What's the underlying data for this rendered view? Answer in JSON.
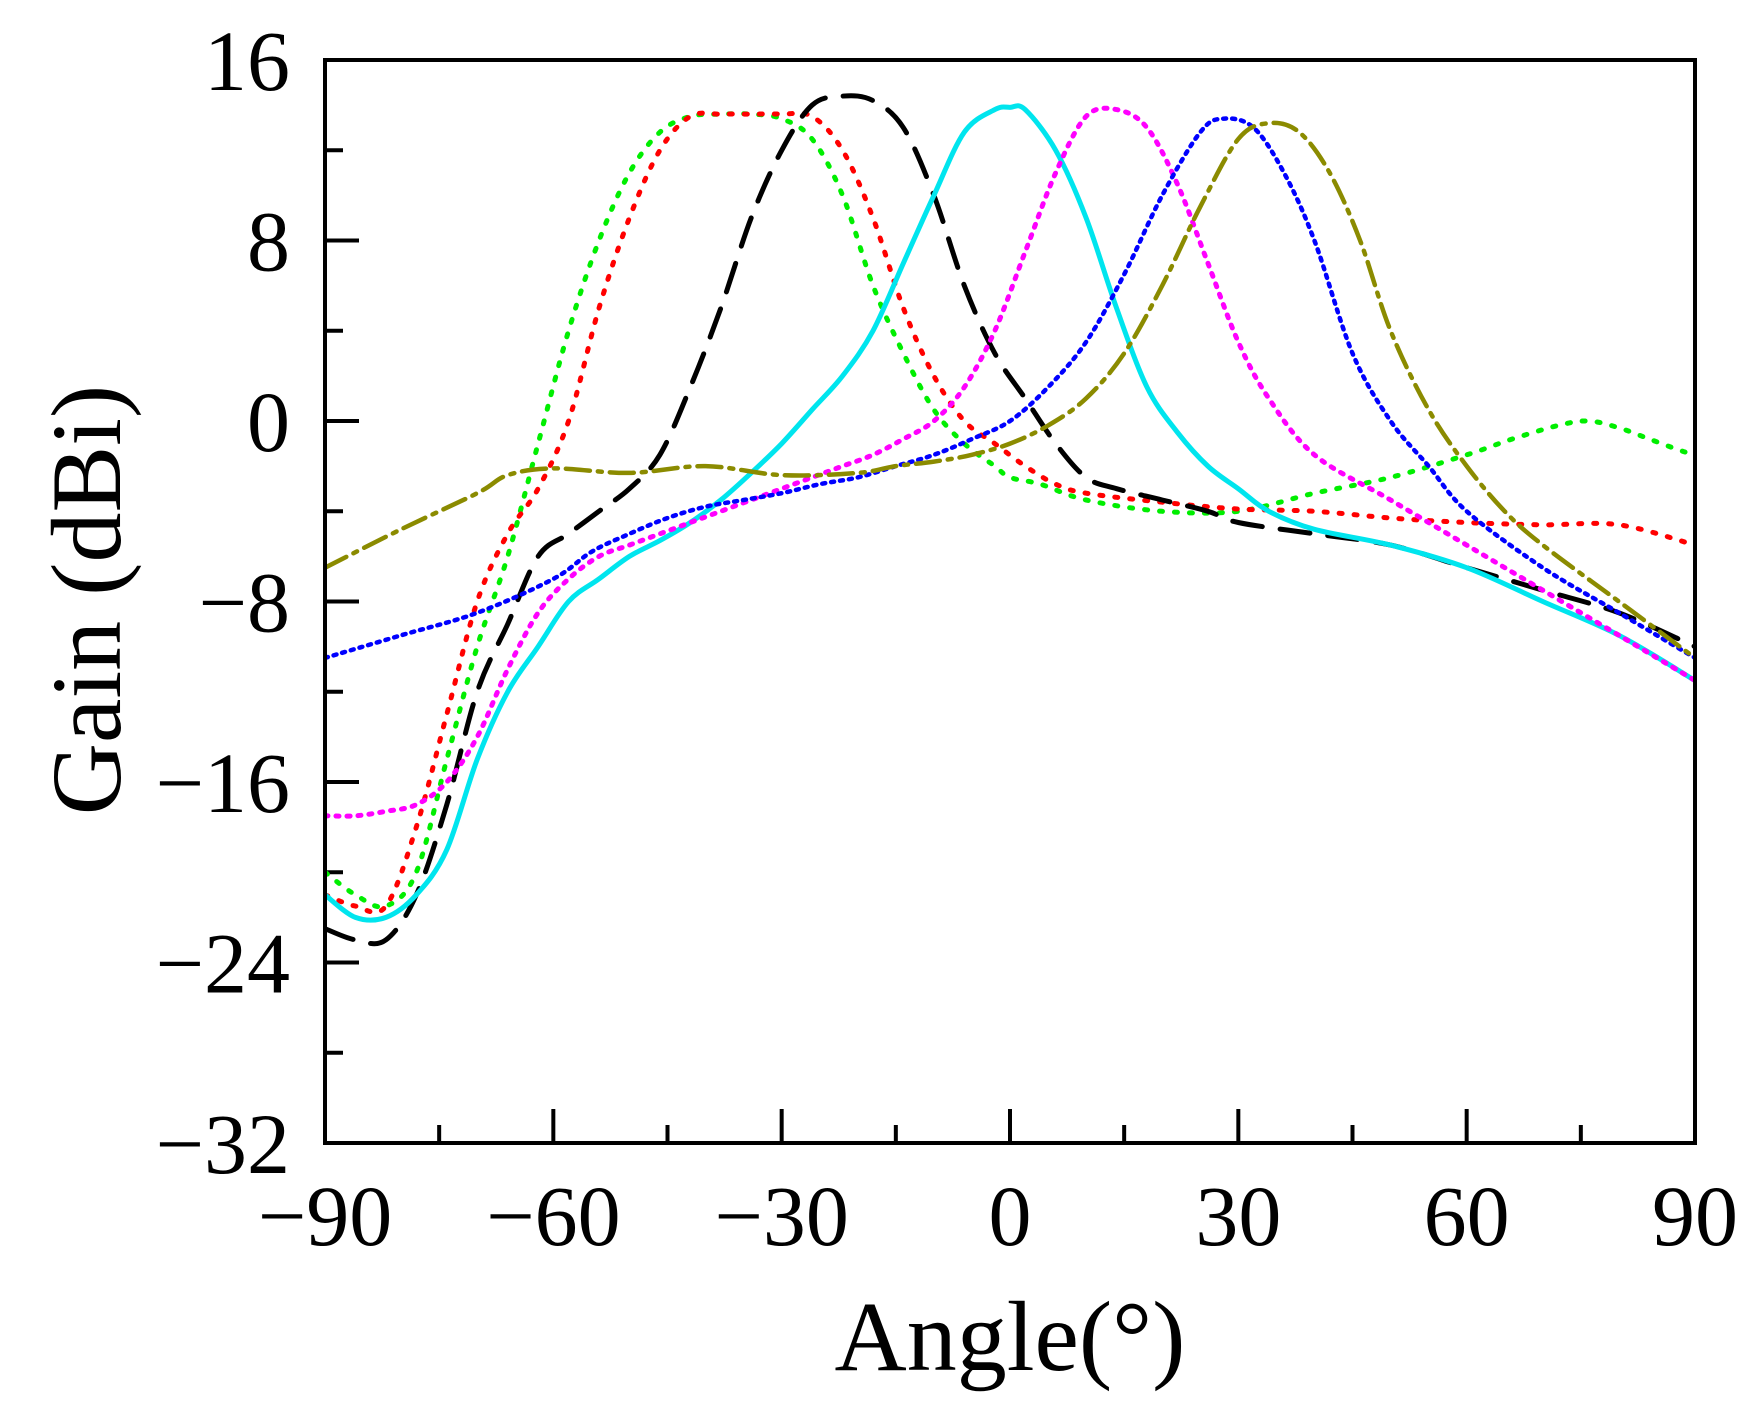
{
  "chart_data": {
    "type": "line",
    "title": "",
    "xlabel": "Angle(°)",
    "ylabel": "Gain (dBi)",
    "xlim": [
      -90,
      90
    ],
    "ylim": [
      -32,
      16
    ],
    "xticks": [
      -90,
      -60,
      -30,
      0,
      30,
      60,
      90
    ],
    "xtick_labels": [
      "−90",
      "−60",
      "−30",
      "0",
      "30",
      "60",
      "90"
    ],
    "xminor": [
      -75,
      -45,
      -15,
      15,
      45,
      75
    ],
    "yticks": [
      16,
      8,
      0,
      -8,
      -16,
      -24,
      -32
    ],
    "ytick_labels": [
      "16",
      "8",
      "0",
      "−8",
      "−16",
      "−24",
      "−32"
    ],
    "yminor": [
      12,
      4,
      -4,
      -12,
      -20,
      -28
    ],
    "grid": false,
    "legend": "none",
    "series": [
      {
        "name": "beam-at--30deg-green",
        "color": "#00ee00",
        "dash": "3 12",
        "width": 5,
        "x": [
          -90,
          -86,
          -82,
          -78,
          -74,
          -70,
          -66,
          -62,
          -58,
          -54,
          -50,
          -46,
          -42,
          -38,
          -34,
          -30,
          -26,
          -22,
          -18,
          -14,
          -10,
          -6,
          -2,
          0,
          4,
          10,
          20,
          30,
          40,
          50,
          60,
          66,
          72,
          76,
          80,
          84,
          88,
          90
        ],
        "y": [
          -20,
          -21,
          -21.5,
          -20,
          -15,
          -10,
          -6,
          -1,
          4,
          8,
          11,
          12.8,
          13.5,
          13.6,
          13.6,
          13.4,
          12.5,
          10,
          6,
          3,
          0.5,
          -1,
          -2,
          -2.5,
          -2.8,
          -3.5,
          -4,
          -4,
          -3.2,
          -2.5,
          -1.5,
          -0.8,
          -0.2,
          0,
          -0.3,
          -0.8,
          -1.3,
          -1.5
        ]
      },
      {
        "name": "beam-at--25deg-red",
        "color": "#ff0000",
        "dash": "3 12",
        "width": 5,
        "x": [
          -90,
          -86,
          -82,
          -78,
          -74,
          -70,
          -66,
          -62,
          -58,
          -54,
          -50,
          -46,
          -42,
          -38,
          -34,
          -30,
          -26,
          -22,
          -18,
          -14,
          -10,
          -6,
          -2,
          2,
          6,
          10,
          20,
          30,
          40,
          50,
          60,
          70,
          80,
          90
        ],
        "y": [
          -21,
          -21.5,
          -21.5,
          -18,
          -13,
          -8,
          -5,
          -3,
          0,
          5,
          9,
          12,
          13.5,
          13.6,
          13.6,
          13.6,
          13.5,
          12,
          9,
          5,
          2,
          0,
          -1,
          -2,
          -2.8,
          -3.2,
          -3.6,
          -3.9,
          -4,
          -4.3,
          -4.5,
          -4.6,
          -4.6,
          -5.5
        ]
      },
      {
        "name": "beam-at--15deg-black",
        "color": "#000000",
        "dash": "30 18",
        "width": 5,
        "x": [
          -90,
          -86,
          -82,
          -78,
          -74,
          -70,
          -66,
          -62,
          -58,
          -54,
          -50,
          -46,
          -42,
          -38,
          -34,
          -30,
          -26,
          -22,
          -18,
          -14,
          -10,
          -6,
          -2,
          2,
          6,
          10,
          14,
          20,
          26,
          30,
          40,
          50,
          60,
          70,
          80,
          90
        ],
        "y": [
          -22.5,
          -23,
          -23,
          -21,
          -17,
          -12,
          -9,
          -6,
          -5,
          -4,
          -3,
          -1.5,
          1.5,
          5,
          9,
          12,
          14,
          14.4,
          14.2,
          13,
          10,
          6,
          3,
          1,
          -1,
          -2.5,
          -3,
          -3.5,
          -4,
          -4.5,
          -5,
          -5.5,
          -6.5,
          -7.5,
          -8.5,
          -10
        ]
      },
      {
        "name": "beam-at-0deg-cyan",
        "color": "#00e5ee",
        "dash": "",
        "width": 5,
        "x": [
          -90,
          -86,
          -82,
          -78,
          -74,
          -70,
          -66,
          -62,
          -58,
          -54,
          -50,
          -46,
          -42,
          -38,
          -34,
          -30,
          -26,
          -22,
          -18,
          -14,
          -10,
          -6,
          -2,
          0,
          2,
          6,
          10,
          14,
          18,
          22,
          26,
          30,
          34,
          40,
          50,
          60,
          70,
          80,
          90
        ],
        "y": [
          -21,
          -22,
          -22,
          -21,
          -19,
          -15,
          -12,
          -10,
          -8,
          -7,
          -6,
          -5.3,
          -4.5,
          -3.5,
          -2.3,
          -1,
          0.5,
          2,
          4,
          7,
          10,
          12.8,
          13.8,
          13.9,
          13.8,
          12,
          9,
          5,
          1.5,
          -0.5,
          -2,
          -3,
          -4,
          -4.8,
          -5.5,
          -6.5,
          -8,
          -9.5,
          -11.5
        ]
      },
      {
        "name": "beam-at-12deg-magenta",
        "color": "#ff00ff",
        "dash": "3 8",
        "width": 5,
        "x": [
          -90,
          -86,
          -82,
          -78,
          -74,
          -70,
          -66,
          -62,
          -58,
          -54,
          -50,
          -46,
          -42,
          -38,
          -34,
          -30,
          -26,
          -22,
          -18,
          -14,
          -10,
          -6,
          -2,
          2,
          6,
          10,
          14,
          18,
          22,
          26,
          30,
          34,
          40,
          50,
          60,
          70,
          80,
          90
        ],
        "y": [
          -17.5,
          -17.5,
          -17.3,
          -17,
          -16,
          -14,
          -11,
          -8.5,
          -7,
          -6,
          -5.5,
          -5,
          -4.5,
          -4,
          -3.5,
          -3,
          -2.5,
          -2,
          -1.5,
          -0.8,
          0,
          1.5,
          4,
          7.5,
          11,
          13.5,
          13.8,
          13,
          10.5,
          7,
          3.5,
          1,
          -1.5,
          -3.5,
          -5.5,
          -7.5,
          -9.5,
          -11.5
        ]
      },
      {
        "name": "beam-at-28deg-blue",
        "color": "#0000ff",
        "dash": "3 6",
        "width": 4.5,
        "x": [
          -90,
          -80,
          -70,
          -60,
          -55,
          -50,
          -45,
          -40,
          -35,
          -30,
          -25,
          -20,
          -15,
          -10,
          -5,
          0,
          5,
          10,
          15,
          20,
          25,
          28,
          32,
          36,
          40,
          45,
          50,
          55,
          60,
          70,
          80,
          90
        ],
        "y": [
          -10.5,
          -9.5,
          -8.5,
          -7,
          -5.8,
          -5,
          -4.3,
          -3.8,
          -3.5,
          -3.2,
          -2.8,
          -2.5,
          -2,
          -1.5,
          -0.8,
          0,
          1.5,
          3.5,
          6.5,
          10,
          12.8,
          13.4,
          13,
          11,
          8,
          3,
          0,
          -2,
          -4,
          -6.5,
          -8.5,
          -10.5
        ]
      },
      {
        "name": "beam-at-34deg-olive",
        "color": "#8b8b00",
        "dash": "24 8 4 8",
        "width": 4.5,
        "x": [
          -90,
          -80,
          -70,
          -66,
          -60,
          -50,
          -40,
          -30,
          -20,
          -15,
          -10,
          -5,
          0,
          5,
          10,
          15,
          20,
          25,
          30,
          34,
          38,
          42,
          46,
          50,
          55,
          60,
          65,
          70,
          80,
          90
        ],
        "y": [
          -6.5,
          -4.8,
          -3.2,
          -2.4,
          -2.1,
          -2.3,
          -2.0,
          -2.4,
          -2.3,
          -2.0,
          -1.8,
          -1.5,
          -1.0,
          -0.2,
          1,
          3,
          6,
          9.5,
          12.5,
          13.2,
          12.8,
          11,
          8,
          4,
          0.5,
          -2,
          -4,
          -5.5,
          -8,
          -10.5
        ]
      }
    ]
  }
}
